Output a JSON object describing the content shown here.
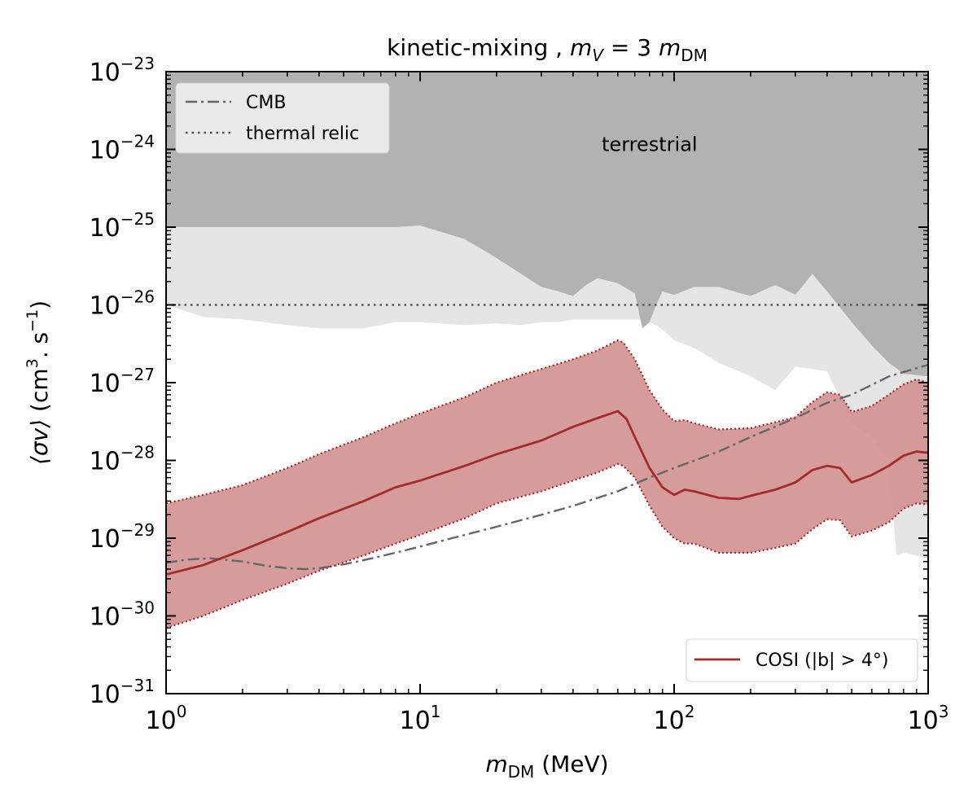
{
  "chart_data": {
    "type": "line",
    "title": {
      "prefix": "kinetic-mixing ,",
      "math": {
        "lhs": "m",
        "lhs_sub": "V",
        "eq": "= 3",
        "rhs": "m",
        "rhs_sub": "DM"
      }
    },
    "xlabel": {
      "symbol": "m",
      "sub": "DM",
      "unit": "(MeV)"
    },
    "ylabel": {
      "symbol": "⟨σv⟩",
      "unit_open": "(cm",
      "unit_exp1": "3",
      "unit_mid": ". s",
      "unit_exp2": "−1",
      "unit_close": ")"
    },
    "xscale": "log",
    "yscale": "log",
    "xlim": [
      1,
      1000
    ],
    "ylim": [
      1e-31,
      1e-23
    ],
    "xticks": [
      {
        "base": "10",
        "exp": "0",
        "value": 1
      },
      {
        "base": "10",
        "exp": "1",
        "value": 10
      },
      {
        "base": "10",
        "exp": "2",
        "value": 100
      },
      {
        "base": "10",
        "exp": "3",
        "value": 1000
      }
    ],
    "yticks": [
      {
        "base": "10",
        "exp": "−31",
        "value": 1e-31
      },
      {
        "base": "10",
        "exp": "−30",
        "value": 1e-30
      },
      {
        "base": "10",
        "exp": "−29",
        "value": 1e-29
      },
      {
        "base": "10",
        "exp": "−28",
        "value": 1e-28
      },
      {
        "base": "10",
        "exp": "−27",
        "value": 1e-27
      },
      {
        "base": "10",
        "exp": "−26",
        "value": 1e-26
      },
      {
        "base": "10",
        "exp": "−25",
        "value": 1e-25
      },
      {
        "base": "10",
        "exp": "−24",
        "value": 1e-24
      },
      {
        "base": "10",
        "exp": "−23",
        "value": 1e-23
      }
    ],
    "annotations": [
      {
        "text": "terrestrial",
        "x": 80,
        "y": 1e-24
      }
    ],
    "colors": {
      "terrestrial_dark": "#b2b2b2",
      "terrestrial_light": "#e5e5e5",
      "cosi": "#a52a2a",
      "cosi_band": "#d39494",
      "cmb": "#666666",
      "relic": "#555555"
    },
    "legend_top": {
      "placement": "top-left",
      "entries": [
        {
          "label": "CMB",
          "style": "dashdot"
        },
        {
          "label": "thermal relic",
          "style": "dotted"
        }
      ]
    },
    "legend_bottom": {
      "placement": "bottom-right",
      "entries": [
        {
          "label": "COSI (|b| > 4°)",
          "style": "solid"
        }
      ]
    },
    "series": [
      {
        "name": "terrestrial (dark)",
        "kind": "region-above",
        "x": [
          1,
          1.4,
          2,
          3,
          4,
          6,
          8,
          10,
          15,
          20,
          25,
          30,
          35,
          40,
          45,
          50,
          60,
          70,
          75,
          80,
          85,
          90,
          100,
          120,
          150,
          200,
          250,
          300,
          350,
          400,
          500,
          600,
          700,
          800,
          1000
        ],
        "y": [
          1e-25,
          1e-25,
          1e-25,
          1e-25,
          1e-25,
          1e-25,
          1e-25,
          1.05e-25,
          7e-26,
          4e-26,
          2.5e-26,
          1.7e-26,
          1.5e-26,
          1.3e-26,
          1.8e-26,
          2.2e-26,
          1.9e-26,
          1.4e-26,
          5e-27,
          6e-27,
          1e-26,
          1.5e-26,
          1.35e-26,
          1.7e-26,
          1.7e-26,
          1.3e-26,
          1.8e-26,
          1.35e-26,
          2.5e-26,
          1.5e-26,
          6e-27,
          3e-27,
          1.8e-27,
          1.3e-27,
          1.2e-27
        ]
      },
      {
        "name": "terrestrial (light)",
        "kind": "region-band",
        "x": [
          1,
          1.4,
          2,
          3,
          4,
          6,
          8,
          10,
          15,
          20,
          25,
          30,
          35,
          40,
          45,
          50,
          60,
          70,
          75,
          80,
          85,
          90,
          100,
          120,
          150,
          200,
          250,
          300,
          350,
          400,
          500,
          600,
          700,
          750,
          800,
          1000
        ],
        "y_lower": [
          1e-26,
          7e-27,
          6.5e-27,
          5.5e-27,
          5e-27,
          5e-27,
          6e-27,
          6e-27,
          5.5e-27,
          5.8e-27,
          5.5e-27,
          6e-27,
          6e-27,
          6.5e-27,
          6.5e-27,
          6.5e-27,
          6.5e-27,
          6.5e-27,
          6.5e-27,
          6e-27,
          5.5e-27,
          4.8e-27,
          3.5e-27,
          2.8e-27,
          1.8e-27,
          1.2e-27,
          8e-28,
          1.6e-27,
          1.5e-27,
          1.4e-27,
          3e-28,
          2e-28,
          1e-28,
          6e-30,
          6.5e-30,
          5.5e-30
        ],
        "y_upper": [
          1e-25,
          1e-25,
          1e-25,
          1e-25,
          1e-25,
          1e-25,
          1e-25,
          1.05e-25,
          7e-26,
          4e-26,
          2.5e-26,
          1.7e-26,
          1.5e-26,
          1.3e-26,
          1.8e-26,
          2.2e-26,
          1.9e-26,
          1.4e-26,
          5e-27,
          6e-27,
          1e-26,
          1.5e-26,
          1.35e-26,
          1.7e-26,
          1.7e-26,
          1.3e-26,
          1.8e-26,
          1.35e-26,
          2.5e-26,
          1.5e-26,
          6e-27,
          3e-27,
          1.8e-27,
          1.5e-27,
          1.3e-27,
          1.2e-27
        ]
      },
      {
        "name": "COSI band",
        "kind": "band",
        "x": [
          1,
          1.4,
          2,
          3,
          4,
          6,
          8,
          10,
          15,
          20,
          30,
          40,
          50,
          60,
          63,
          70,
          80,
          90,
          100,
          110,
          120,
          150,
          200,
          250,
          300,
          350,
          400,
          450,
          500,
          600,
          700,
          800,
          900,
          1000
        ],
        "y_lower": [
          7e-31,
          1e-30,
          1.6e-30,
          2.6e-30,
          3.8e-30,
          6e-30,
          8.5e-30,
          1.1e-29,
          1.8e-29,
          2.8e-29,
          4e-29,
          5.5e-29,
          7e-29,
          9e-29,
          8.5e-29,
          6e-29,
          2.6e-29,
          1.4e-29,
          1e-29,
          8.5e-30,
          8.5e-30,
          6.5e-30,
          6.5e-30,
          7.5e-30,
          8.5e-30,
          1.3e-29,
          1.75e-29,
          1.7e-29,
          1.05e-29,
          1.25e-29,
          1.6e-29,
          2.4e-29,
          2.8e-29,
          2.7e-29
        ],
        "y_upper": [
          2.8e-29,
          3.6e-29,
          4.8e-29,
          8e-29,
          1.2e-28,
          2e-28,
          3e-28,
          4e-28,
          6.5e-28,
          1e-27,
          1.5e-27,
          2e-27,
          2.6e-27,
          3.5e-27,
          3.3e-27,
          2e-27,
          8e-28,
          4.5e-28,
          3.2e-28,
          3.3e-28,
          3e-28,
          2.5e-28,
          2.6e-28,
          3.1e-28,
          3.6e-28,
          5.6e-28,
          7.5e-28,
          7e-28,
          4.2e-28,
          5e-28,
          7e-28,
          9.5e-28,
          1.1e-27,
          1e-27
        ]
      },
      {
        "name": "COSI (|b| > 4°)",
        "kind": "line",
        "style": "solid",
        "x": [
          1,
          1.4,
          2,
          3,
          4,
          6,
          8,
          10,
          15,
          20,
          30,
          40,
          50,
          60,
          65,
          70,
          80,
          90,
          100,
          110,
          120,
          150,
          180,
          200,
          250,
          300,
          350,
          400,
          450,
          500,
          600,
          700,
          800,
          900,
          1000
        ],
        "y": [
          3.4e-30,
          4.5e-30,
          7e-30,
          1.2e-29,
          1.8e-29,
          3e-29,
          4.5e-29,
          5.5e-29,
          8.5e-29,
          1.2e-28,
          1.8e-28,
          2.7e-28,
          3.5e-28,
          4.3e-28,
          3.4e-28,
          2e-28,
          8e-29,
          4.5e-29,
          3.6e-29,
          4.2e-29,
          4e-29,
          3.3e-29,
          3.2e-29,
          3.5e-29,
          4.2e-29,
          5.2e-29,
          7.5e-29,
          8.5e-29,
          8e-29,
          5.2e-29,
          6.5e-29,
          8.5e-29,
          1.15e-28,
          1.3e-28,
          1.25e-28
        ]
      },
      {
        "name": "CMB",
        "kind": "line",
        "style": "dashdot",
        "x": [
          1,
          1.2,
          1.5,
          2,
          2.5,
          3,
          3.5,
          4,
          5,
          6,
          8,
          10,
          15,
          20,
          30,
          40,
          50,
          60,
          70,
          80,
          100,
          150,
          200,
          300,
          400,
          500,
          700,
          1000
        ],
        "y": [
          4.8e-30,
          5.3e-30,
          5.5e-30,
          5e-30,
          4.4e-30,
          4.1e-30,
          4e-30,
          4.1e-30,
          4.6e-30,
          5.2e-30,
          6.5e-30,
          7.8e-30,
          1.1e-29,
          1.4e-29,
          2e-29,
          2.6e-29,
          3.3e-29,
          4e-29,
          5e-29,
          6e-29,
          8e-29,
          1.3e-28,
          2e-28,
          3.5e-28,
          5.5e-28,
          7e-28,
          1.2e-27,
          1.7e-27
        ]
      },
      {
        "name": "thermal relic",
        "kind": "line",
        "style": "dotted",
        "x": [
          1,
          1000
        ],
        "y": [
          1e-26,
          1e-26
        ]
      }
    ]
  }
}
